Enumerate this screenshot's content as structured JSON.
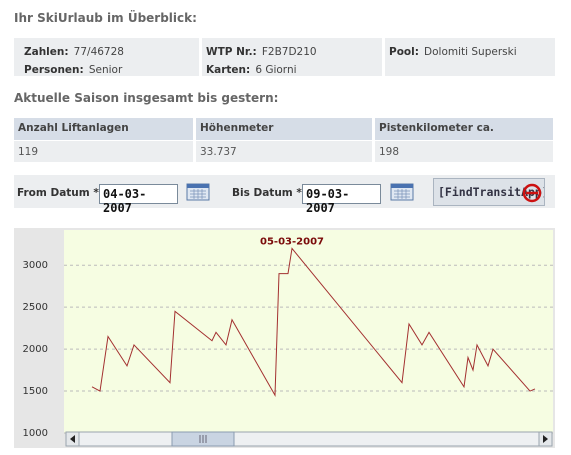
{
  "header": {
    "title": "Ihr SkiUrlaub im Überblick:"
  },
  "info": {
    "columns": [
      [
        {
          "label": "Zahlen:",
          "value": "77/46728"
        },
        {
          "label": "Personen:",
          "value": "Senior"
        }
      ],
      [
        {
          "label": "WTP Nr.:",
          "value": "F2B7D210"
        },
        {
          "label": "Karten:",
          "value": "6 Giorni"
        }
      ],
      [
        {
          "label": "Pool:",
          "value": "Dolomiti Superski"
        }
      ]
    ]
  },
  "season": {
    "title": "Aktuelle Saison insgesamt bis gestern:",
    "table": {
      "headers": [
        "Anzahl Liftanlagen",
        "Höhenmeter",
        "Pistenkilometer ca."
      ],
      "rows": [
        [
          "119",
          "33.737",
          "198"
        ]
      ]
    }
  },
  "form": {
    "from_label": "From Datum *",
    "from_value": "04-03-2007",
    "to_label": "Bis Datum *",
    "to_value": "09-03-2007",
    "button": "[FindTransitApp]"
  },
  "chart_data": {
    "type": "line",
    "x": [
      28,
      36,
      44,
      63,
      70,
      106,
      111,
      148,
      152,
      162,
      168,
      211,
      215,
      224,
      228,
      338,
      345,
      358,
      365,
      400,
      404,
      409,
      413,
      424,
      429,
      466,
      471
    ],
    "values": [
      1550,
      1500,
      2150,
      1800,
      2050,
      1600,
      2450,
      2100,
      2200,
      2050,
      2350,
      1450,
      2900,
      2900,
      3200,
      1600,
      2300,
      2050,
      2200,
      1550,
      1900,
      1750,
      2050,
      1800,
      2000,
      1500,
      1525
    ],
    "xlim": [
      0,
      489
    ],
    "ylim": [
      1000,
      3420
    ],
    "yticks": [
      1000,
      1500,
      2000,
      2500,
      3000
    ],
    "grid": true,
    "color": "#a33030",
    "annotations": [
      {
        "text": "05-03-2007",
        "x": 228,
        "y": 3200
      }
    ]
  }
}
